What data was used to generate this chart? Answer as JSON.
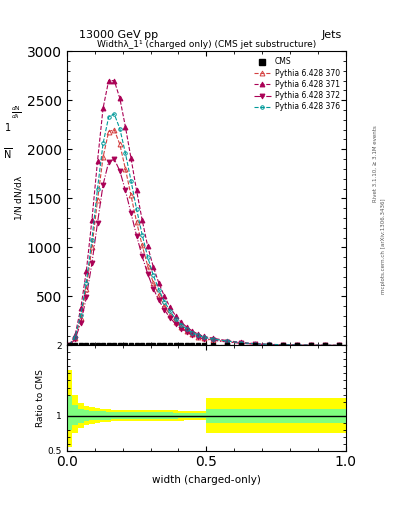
{
  "title_top": "13000 GeV pp",
  "title_right": "Jets",
  "plot_title": "Widthλ_1¹ (charged only) (CMS jet substructure)",
  "xlabel": "width (charged-only)",
  "ylabel_ratio": "Ratio to CMS",
  "right_label": "mcplots.cern.ch [arXiv:1306.3436]",
  "right_label2": "Rivet 3.1.10, ≥ 3.1M events",
  "x_bins": [
    0.0,
    0.02,
    0.04,
    0.06,
    0.08,
    0.1,
    0.12,
    0.14,
    0.16,
    0.18,
    0.2,
    0.22,
    0.24,
    0.26,
    0.28,
    0.3,
    0.32,
    0.34,
    0.36,
    0.38,
    0.4,
    0.42,
    0.44,
    0.46,
    0.48,
    0.5,
    0.55,
    0.6,
    0.65,
    0.7,
    0.75,
    0.8,
    0.85,
    0.9,
    0.95,
    1.0
  ],
  "series": [
    {
      "label": "Pythia 6.428 370",
      "color": "#d43f3f",
      "linestyle": "--",
      "marker": "^",
      "fillstyle": "none",
      "markersize": 3.5,
      "values": [
        5,
        80,
        280,
        580,
        1000,
        1480,
        1920,
        2180,
        2200,
        2050,
        1800,
        1530,
        1260,
        1020,
        810,
        640,
        510,
        400,
        310,
        240,
        188,
        148,
        116,
        91,
        72,
        57,
        38,
        24,
        15,
        9,
        6,
        4,
        2,
        1,
        1
      ]
    },
    {
      "label": "Pythia 6.428 371",
      "color": "#aa0055",
      "linestyle": "--",
      "marker": "^",
      "fillstyle": "full",
      "markersize": 3.5,
      "values": [
        8,
        110,
        380,
        760,
        1280,
        1880,
        2420,
        2700,
        2700,
        2520,
        2230,
        1910,
        1580,
        1280,
        1010,
        800,
        635,
        500,
        390,
        302,
        237,
        187,
        147,
        116,
        92,
        73,
        49,
        31,
        19,
        12,
        8,
        5,
        3,
        2,
        1
      ]
    },
    {
      "label": "Pythia 6.428 372",
      "color": "#aa0055",
      "linestyle": "-.",
      "marker": "v",
      "fillstyle": "full",
      "markersize": 3.5,
      "values": [
        4,
        65,
        230,
        490,
        840,
        1250,
        1640,
        1870,
        1900,
        1780,
        1580,
        1350,
        1120,
        910,
        730,
        580,
        460,
        362,
        282,
        219,
        172,
        135,
        106,
        84,
        66,
        52,
        35,
        22,
        14,
        9,
        6,
        4,
        2,
        1,
        1
      ]
    },
    {
      "label": "Pythia 6.428 376",
      "color": "#009999",
      "linestyle": "--",
      "marker": "o",
      "fillstyle": "none",
      "markersize": 2.5,
      "values": [
        6,
        90,
        310,
        640,
        1080,
        1600,
        2060,
        2330,
        2360,
        2210,
        1960,
        1680,
        1390,
        1130,
        900,
        715,
        568,
        448,
        349,
        271,
        213,
        168,
        132,
        104,
        82,
        65,
        44,
        28,
        17,
        11,
        7,
        5,
        3,
        2,
        1
      ]
    }
  ],
  "ratio_yellow_lower": [
    0.55,
    0.75,
    0.82,
    0.86,
    0.88,
    0.895,
    0.905,
    0.91,
    0.915,
    0.918,
    0.919,
    0.92,
    0.921,
    0.922,
    0.923,
    0.924,
    0.925,
    0.926,
    0.927,
    0.928,
    0.929,
    0.93,
    0.931,
    0.932,
    0.933,
    0.75,
    0.75,
    0.75,
    0.75,
    0.75,
    0.75,
    0.75,
    0.75,
    0.75,
    0.75
  ],
  "ratio_yellow_upper": [
    1.65,
    1.3,
    1.18,
    1.14,
    1.12,
    1.105,
    1.095,
    1.09,
    1.085,
    1.082,
    1.081,
    1.08,
    1.079,
    1.078,
    1.077,
    1.076,
    1.075,
    1.074,
    1.073,
    1.072,
    1.071,
    1.07,
    1.069,
    1.068,
    1.067,
    1.25,
    1.25,
    1.25,
    1.25,
    1.25,
    1.25,
    1.25,
    1.25,
    1.25,
    1.25
  ],
  "ratio_green_lower": [
    0.8,
    0.86,
    0.9,
    0.92,
    0.93,
    0.935,
    0.94,
    0.943,
    0.945,
    0.947,
    0.948,
    0.949,
    0.95,
    0.951,
    0.952,
    0.953,
    0.954,
    0.955,
    0.956,
    0.957,
    0.958,
    0.959,
    0.96,
    0.961,
    0.962,
    0.9,
    0.9,
    0.9,
    0.9,
    0.9,
    0.9,
    0.9,
    0.9,
    0.9,
    0.9
  ],
  "ratio_green_upper": [
    1.28,
    1.15,
    1.1,
    1.08,
    1.07,
    1.065,
    1.06,
    1.057,
    1.055,
    1.053,
    1.052,
    1.051,
    1.05,
    1.049,
    1.048,
    1.047,
    1.046,
    1.045,
    1.044,
    1.043,
    1.042,
    1.041,
    1.04,
    1.039,
    1.038,
    1.1,
    1.1,
    1.1,
    1.1,
    1.1,
    1.1,
    1.1,
    1.1,
    1.1,
    1.1
  ],
  "main_ylim": [
    0,
    3000
  ],
  "main_yticks": [
    0,
    500,
    1000,
    1500,
    2000,
    2500,
    3000
  ],
  "ratio_ylim": [
    0.5,
    2.0
  ],
  "ratio_yticks": [
    0.5,
    1.0,
    2.0
  ],
  "xlim": [
    0.0,
    1.0
  ],
  "xticks": [
    0.0,
    0.5,
    1.0
  ]
}
